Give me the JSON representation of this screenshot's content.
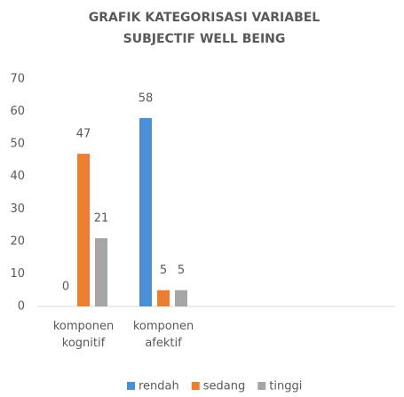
{
  "chart_data": {
    "type": "bar",
    "title": "GRAFIK KATEGORISASI VARIABEL SUBJECTIF WELL BEING",
    "categories": [
      "komponen kognitif",
      "komponen afektif"
    ],
    "series": [
      {
        "name": "rendah",
        "color": "#4a8fd6",
        "values": [
          0,
          58
        ]
      },
      {
        "name": "sedang",
        "color": "#ed7d31",
        "values": [
          47,
          5
        ]
      },
      {
        "name": "tinggi",
        "color": "#a5a5a5",
        "values": [
          21,
          5
        ]
      }
    ],
    "ylim": [
      0,
      70
    ],
    "yticks": [
      0,
      10,
      20,
      30,
      40,
      50,
      60,
      70
    ],
    "grid": false,
    "legend": "bottom"
  }
}
